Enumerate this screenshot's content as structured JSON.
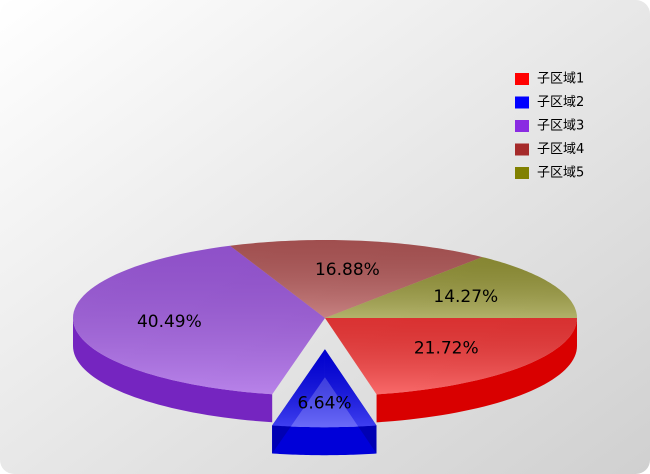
{
  "chart_data": {
    "type": "pie",
    "categories": [
      "子区域1",
      "子区域2",
      "子区域3",
      "子区域4",
      "子区域5"
    ],
    "values": [
      21.72,
      6.64,
      40.49,
      16.88,
      14.27
    ],
    "value_labels": [
      "21.72%",
      "6.64%",
      "40.49%",
      "16.88%",
      "14.27%"
    ],
    "colors": [
      "#ff0000",
      "#0000ff",
      "#8a2be2",
      "#a52a2a",
      "#808000"
    ],
    "exploded": [
      "子区域2"
    ],
    "legend": "top-right"
  }
}
